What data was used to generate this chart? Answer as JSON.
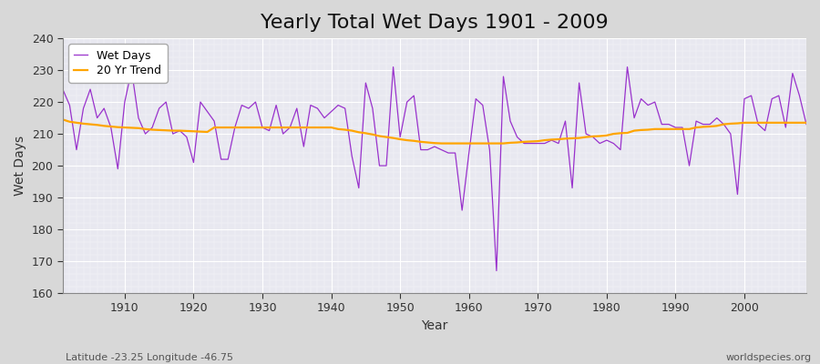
{
  "title": "Yearly Total Wet Days 1901 - 2009",
  "xlabel": "Year",
  "ylabel": "Wet Days",
  "start_year": 1901,
  "end_year": 2009,
  "wet_days": [
    224,
    219,
    205,
    218,
    224,
    215,
    218,
    212,
    199,
    220,
    230,
    215,
    210,
    212,
    218,
    220,
    210,
    211,
    209,
    201,
    220,
    217,
    214,
    202,
    202,
    212,
    219,
    218,
    220,
    212,
    211,
    219,
    210,
    212,
    218,
    206,
    219,
    218,
    215,
    217,
    219,
    218,
    203,
    193,
    226,
    218,
    200,
    200,
    231,
    209,
    220,
    222,
    205,
    205,
    206,
    205,
    204,
    204,
    186,
    204,
    221,
    219,
    205,
    167,
    228,
    214,
    209,
    207,
    207,
    207,
    207,
    208,
    207,
    214,
    193,
    226,
    210,
    209,
    207,
    208,
    207,
    205,
    231,
    215,
    221,
    219,
    220,
    213,
    213,
    212,
    212,
    200,
    214,
    213,
    213,
    215,
    213,
    210,
    191,
    221,
    222,
    213,
    211,
    221,
    222,
    212,
    229,
    222,
    213
  ],
  "trend": [
    214.5,
    213.8,
    213.5,
    213.2,
    213.0,
    212.8,
    212.5,
    212.3,
    212.1,
    212.0,
    211.9,
    211.8,
    211.5,
    211.3,
    211.2,
    211.1,
    211.0,
    211.0,
    210.9,
    210.8,
    210.7,
    210.6,
    212.0,
    212.0,
    212.0,
    212.0,
    212.0,
    212.0,
    212.0,
    212.0,
    212.0,
    212.0,
    212.0,
    212.0,
    212.0,
    212.0,
    212.0,
    212.0,
    212.0,
    212.0,
    211.5,
    211.3,
    211.0,
    210.5,
    210.2,
    209.8,
    209.3,
    209.0,
    208.7,
    208.3,
    208.0,
    207.8,
    207.5,
    207.3,
    207.1,
    207.0,
    207.0,
    207.0,
    207.0,
    207.0,
    207.0,
    207.0,
    207.0,
    207.0,
    207.0,
    207.2,
    207.3,
    207.5,
    207.6,
    207.7,
    208.0,
    208.2,
    208.3,
    208.5,
    208.6,
    208.7,
    209.0,
    209.2,
    209.3,
    209.5,
    210.0,
    210.2,
    210.3,
    211.0,
    211.2,
    211.3,
    211.5,
    211.5,
    211.5,
    211.5,
    211.5,
    211.5,
    212.0,
    212.2,
    212.3,
    212.5,
    213.0,
    213.2,
    213.3,
    213.5,
    213.5,
    213.5,
    213.5,
    213.5,
    213.5,
    213.5,
    213.5,
    213.5,
    213.5
  ],
  "wet_days_color": "#9932CC",
  "trend_color": "#FFA500",
  "bg_color": "#d8d8d8",
  "plot_bg_color": "#e8e8f0",
  "ylim": [
    160,
    240
  ],
  "yticks": [
    160,
    170,
    180,
    190,
    200,
    210,
    220,
    230,
    240
  ],
  "xticks": [
    1910,
    1920,
    1930,
    1940,
    1950,
    1960,
    1970,
    1980,
    1990,
    2000
  ],
  "xlim": [
    1901,
    2009
  ],
  "footnote_left": "Latitude -23.25 Longitude -46.75",
  "footnote_right": "worldspecies.org",
  "title_fontsize": 16,
  "label_fontsize": 10,
  "tick_fontsize": 9,
  "footnote_fontsize": 8,
  "legend_fontsize": 9
}
